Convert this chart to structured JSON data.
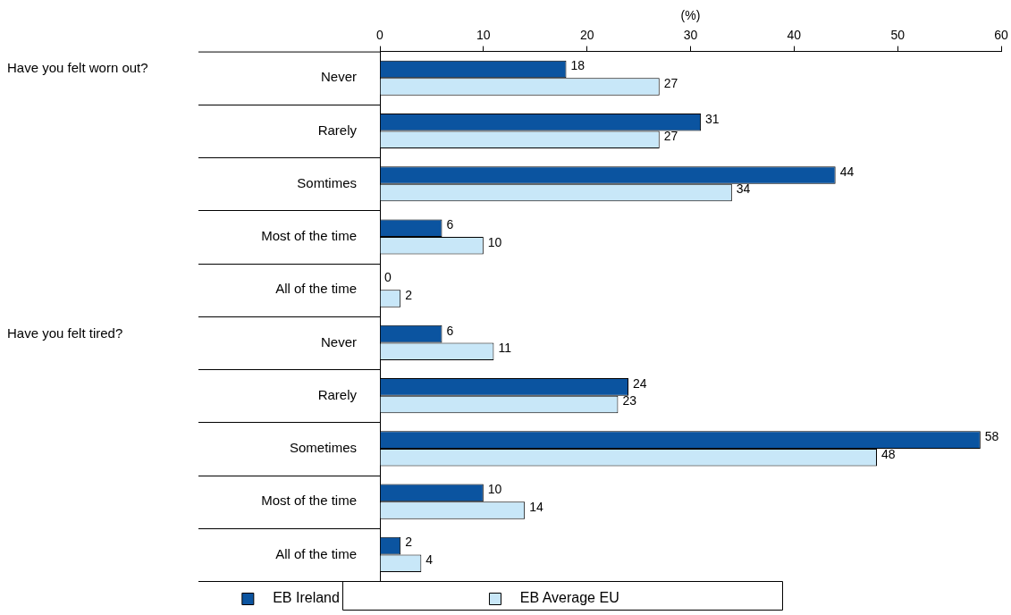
{
  "chart_data": {
    "type": "bar",
    "orientation": "horizontal",
    "xlabel": "(%)",
    "categories": [
      "Never",
      "Rarely",
      "Somtimes",
      "Most of the time",
      "All of the time",
      "Never",
      "Rarely",
      "Sometimes",
      "Most of the time",
      "All of the time"
    ],
    "series": [
      {
        "name": "EB Ireland",
        "color": "#0b54a0",
        "values": [
          18,
          31,
          44,
          6,
          0,
          6,
          24,
          58,
          10,
          2
        ]
      },
      {
        "name": "EB Average EU",
        "color": "#c8e7f8",
        "values": [
          27,
          27,
          34,
          10,
          2,
          11,
          23,
          48,
          14,
          4
        ]
      }
    ],
    "xlim": [
      0,
      60
    ],
    "xticks": [
      0,
      10,
      20,
      30,
      40,
      50,
      60
    ],
    "annotations": [
      "Have you felt worn out?",
      "Have you felt tired?"
    ],
    "data_labels": true,
    "grid": false,
    "legend": "bottom"
  }
}
